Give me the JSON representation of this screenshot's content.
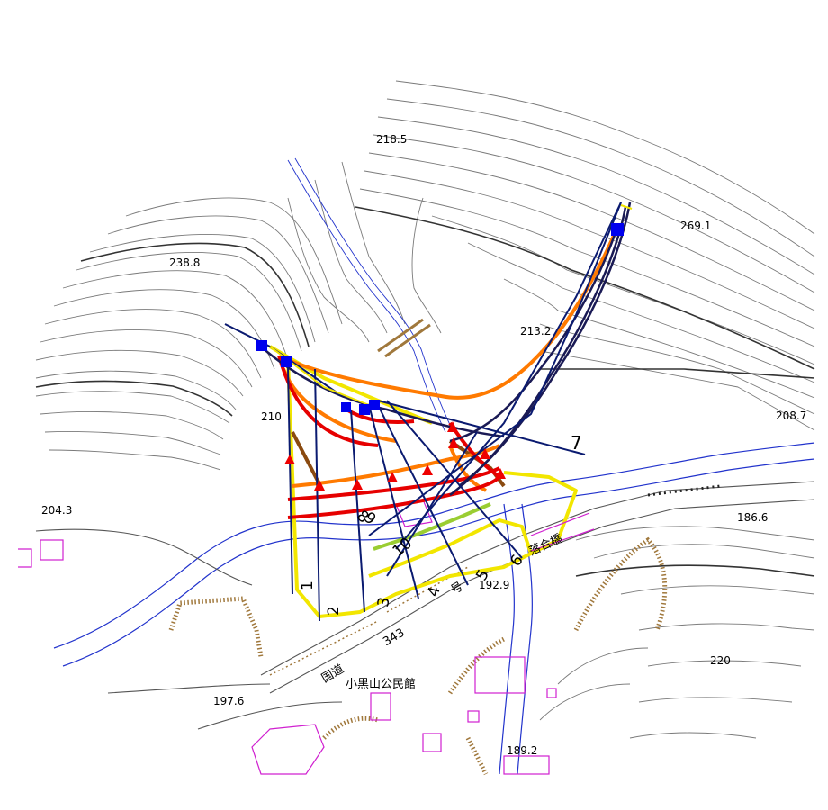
{
  "elevations": {
    "e218_5": "218.5",
    "e269_1": "269.1",
    "e238_8": "238.8",
    "e213_2": "213.2",
    "e210": "210",
    "e208_7": "208.7",
    "e204_3": "204.3",
    "e186_6": "186.6",
    "e192_9": "192.9",
    "e220": "220",
    "e197_6": "197.6",
    "e189_2": "189.2"
  },
  "section_numbers": {
    "s1": "1",
    "s2": "2",
    "s3": "3",
    "s4": "4",
    "s5": "5",
    "s6": "6",
    "s7": "7",
    "s8": "8",
    "s9": "9",
    "s10": "10"
  },
  "place_names": {
    "bridge": "落合橋",
    "route_prefix": "国道",
    "route_number": "343",
    "route_suffix": "号",
    "community_hall": "小黒山公民館"
  },
  "colors": {
    "contour": "#6e6e6e",
    "contour_index": "#3a3a3a",
    "river": "#2233cc",
    "section_line": "#0a1a70",
    "hazard_red": "#e60000",
    "hazard_orange": "#ff7a00",
    "hazard_brown": "#8a4a10",
    "hazard_yellow": "#f2e600",
    "hazard_green": "#9acd32",
    "building": "#d020d0",
    "marker_blue": "#0000ee",
    "marker_red": "#ee0000",
    "retaining_wall": "#a0783c"
  }
}
